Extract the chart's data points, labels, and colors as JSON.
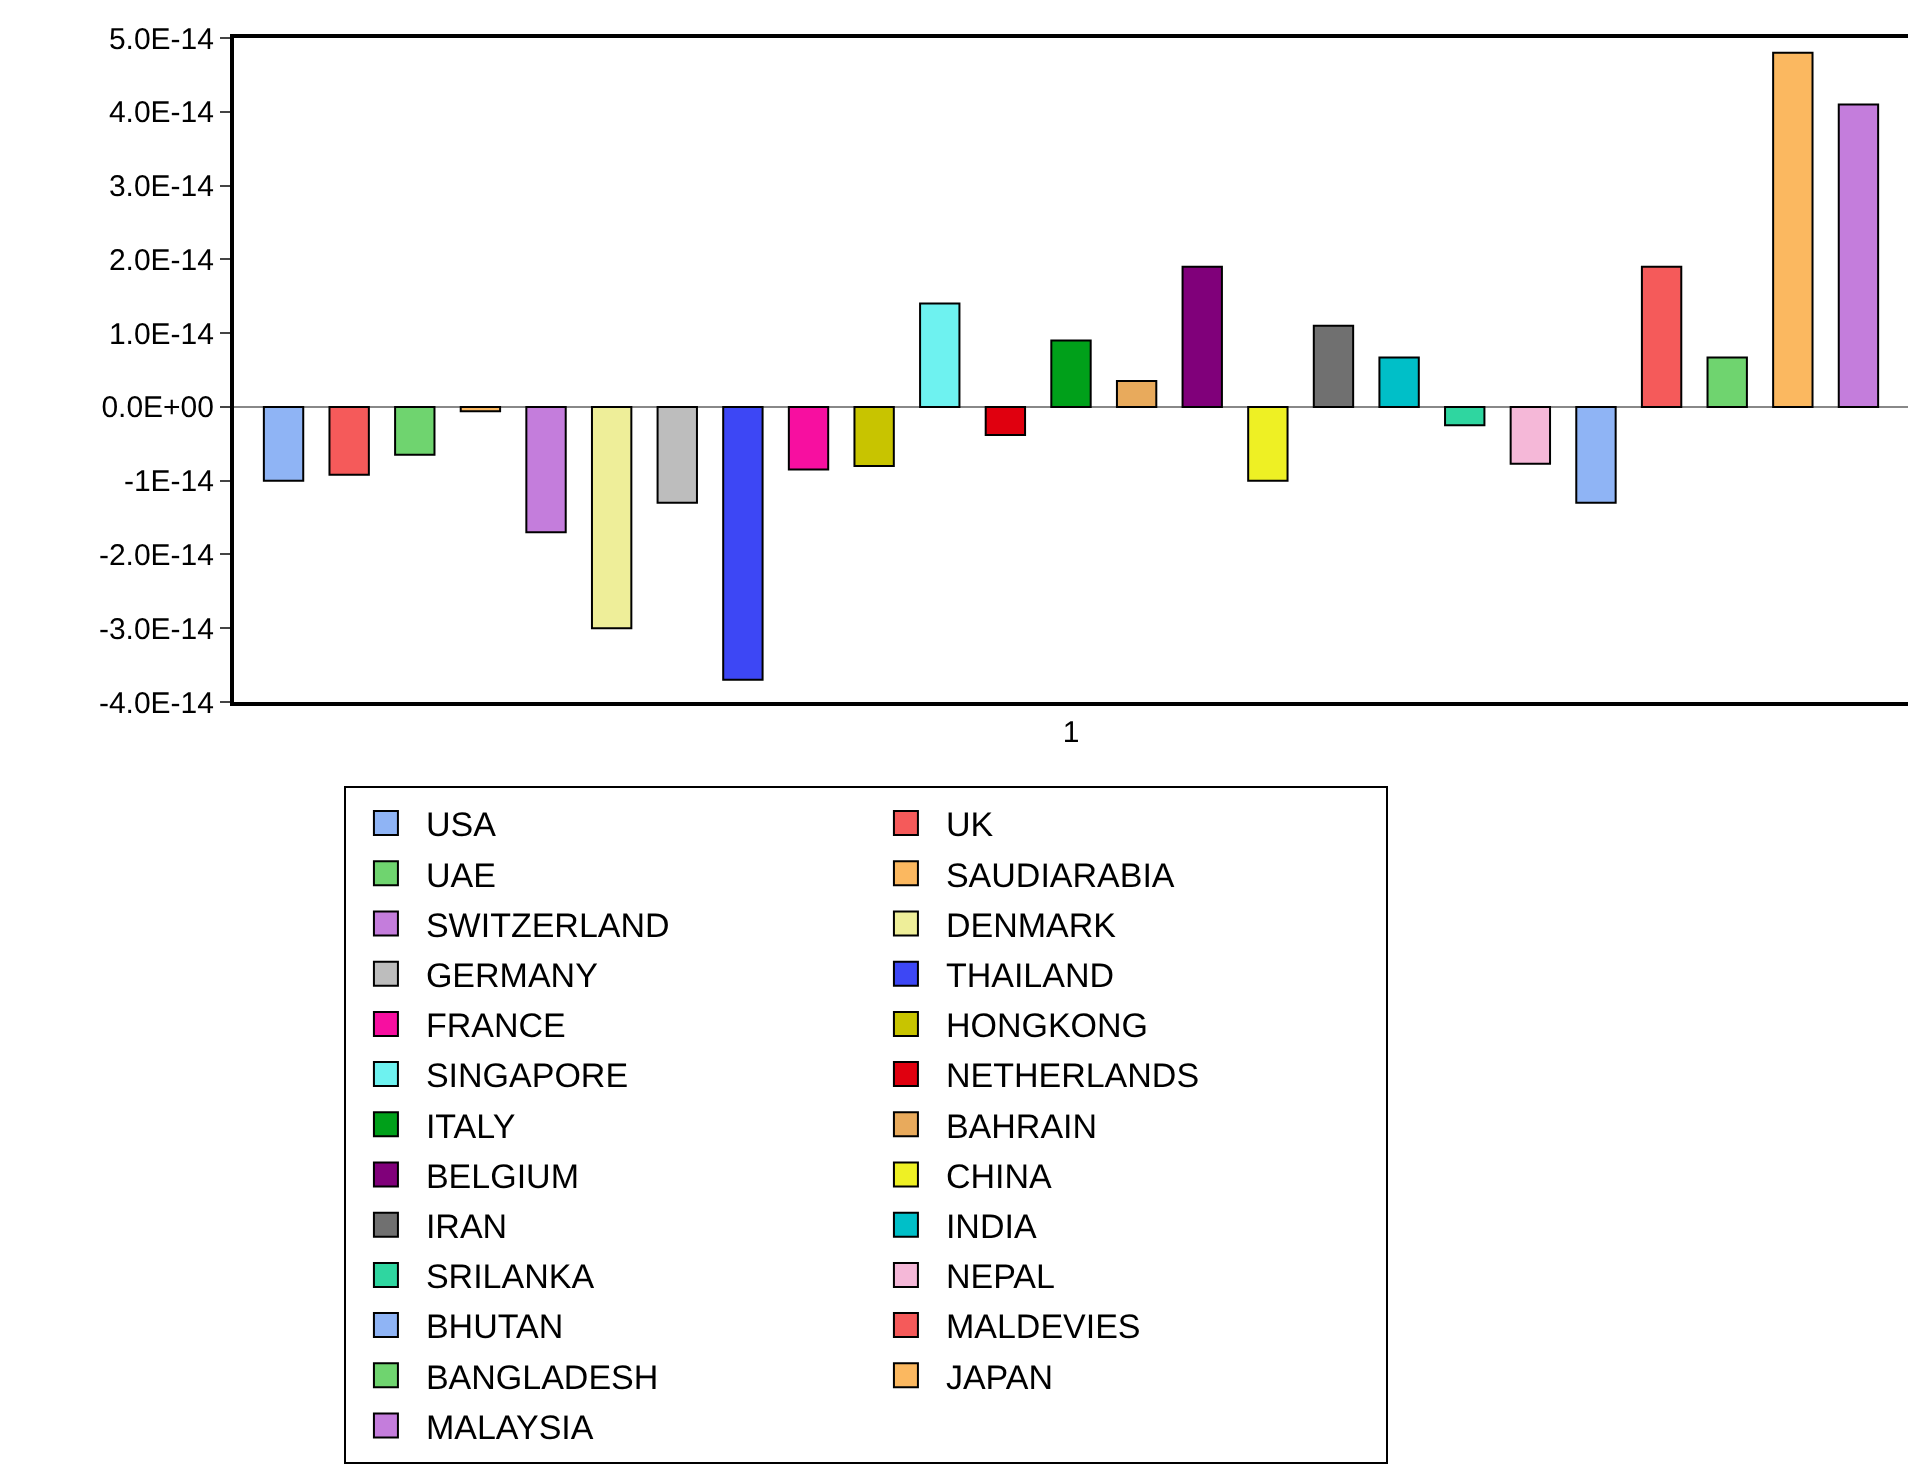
{
  "chart_data": {
    "type": "bar",
    "categories": [
      "1"
    ],
    "series": [
      {
        "name": "USA",
        "color": "#8fb4f5",
        "values": [
          -1e-14
        ]
      },
      {
        "name": "UK",
        "color": "#f55a5a",
        "values": [
          -9.2e-15
        ]
      },
      {
        "name": "UAE",
        "color": "#6fd46f",
        "values": [
          -6.5e-15
        ]
      },
      {
        "name": "SAUDIARABIA",
        "color": "#fbb860",
        "values": [
          -6e-16
        ]
      },
      {
        "name": "SWITZERLAND",
        "color": "#c47ddc",
        "values": [
          -1.7e-14
        ]
      },
      {
        "name": "DENMARK",
        "color": "#eeee99",
        "values": [
          -3e-14
        ]
      },
      {
        "name": "GERMANY",
        "color": "#bdbdbd",
        "values": [
          -1.3e-14
        ]
      },
      {
        "name": "THAILAND",
        "color": "#3d47f5",
        "values": [
          -3.7e-14
        ]
      },
      {
        "name": "FRANCE",
        "color": "#f70fa0",
        "values": [
          -8.5e-15
        ]
      },
      {
        "name": "HONGKONG",
        "color": "#c8c400",
        "values": [
          -8e-15
        ]
      },
      {
        "name": "SINGAPORE",
        "color": "#6ef2f0",
        "values": [
          1.4e-14
        ]
      },
      {
        "name": "NETHERLANDS",
        "color": "#e0000f",
        "values": [
          -3.8e-15
        ]
      },
      {
        "name": "ITALY",
        "color": "#00a01a",
        "values": [
          9e-15
        ]
      },
      {
        "name": "BAHRAIN",
        "color": "#e8aa5c",
        "values": [
          3.5e-15
        ]
      },
      {
        "name": "BELGIUM",
        "color": "#80007a",
        "values": [
          1.9e-14
        ]
      },
      {
        "name": "CHINA",
        "color": "#eef024",
        "values": [
          -1e-14
        ]
      },
      {
        "name": "IRAN",
        "color": "#707070",
        "values": [
          1.1e-14
        ]
      },
      {
        "name": "INDIA",
        "color": "#00bfc8",
        "values": [
          6.7e-15
        ]
      },
      {
        "name": "SRILANKA",
        "color": "#2fd6a0",
        "values": [
          -2.5e-15
        ]
      },
      {
        "name": "NEPAL",
        "color": "#f5b8d8",
        "values": [
          -7.7e-15
        ]
      },
      {
        "name": "BHUTAN",
        "color": "#8fb4f5",
        "values": [
          -1.3e-14
        ]
      },
      {
        "name": "MALDEVIES",
        "color": "#f55a5a",
        "values": [
          1.9e-14
        ]
      },
      {
        "name": "BANGLADESH",
        "color": "#6fd46f",
        "values": [
          6.7e-15
        ]
      },
      {
        "name": "JAPAN",
        "color": "#fbb860",
        "values": [
          4.8e-14
        ]
      },
      {
        "name": "MALAYSIA",
        "color": "#c47ddc",
        "values": [
          4.1e-14
        ]
      }
    ],
    "ylim": [
      -4e-14,
      5e-14
    ],
    "yticks": [
      {
        "value": -4e-14,
        "label": "-4.0E-14"
      },
      {
        "value": -3e-14,
        "label": "-3.0E-14"
      },
      {
        "value": -2e-14,
        "label": "-2.0E-14"
      },
      {
        "value": -1e-14,
        "label": "-1E-14"
      },
      {
        "value": 0,
        "label": "0.0E+00"
      },
      {
        "value": 1e-14,
        "label": "1.0E-14"
      },
      {
        "value": 2e-14,
        "label": "2.0E-14"
      },
      {
        "value": 3e-14,
        "label": "3.0E-14"
      },
      {
        "value": 4e-14,
        "label": "4.0E-14"
      },
      {
        "value": 5e-14,
        "label": "5.0E-14"
      }
    ],
    "ref_lines": [
      {
        "axis": "y",
        "value": 0,
        "color": "#888888"
      }
    ],
    "grid": false,
    "legend": "bottom"
  }
}
